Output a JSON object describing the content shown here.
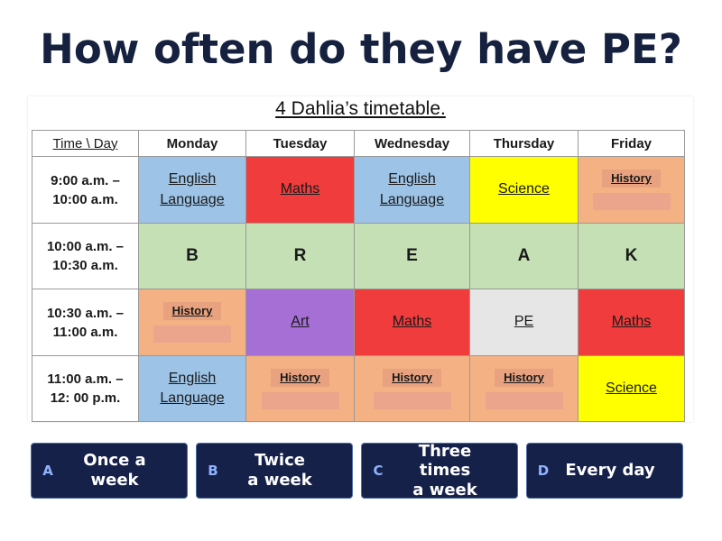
{
  "question": "How often do they have PE?",
  "timetable": {
    "title": "4 Dahlia’s timetable.",
    "header": [
      "Time \\ Day",
      "Monday",
      "Tuesday",
      "Wednesday",
      "Thursday",
      "Friday"
    ],
    "rows": [
      {
        "time": "9:00 a.m. –\n10:00 a.m.",
        "cells": [
          {
            "text": "English\nLanguage",
            "color": "#9dc3e6"
          },
          {
            "text": "Maths",
            "color": "#f03c3c"
          },
          {
            "text": "English\nLanguage",
            "color": "#9dc3e6"
          },
          {
            "text": "Science",
            "color": "#ffff00"
          },
          {
            "text": "History",
            "color": "#f4b183",
            "answer_box": true
          }
        ]
      },
      {
        "time": "10:00 a.m. –\n10:30 a.m.",
        "cells": [
          {
            "text": "B",
            "color": "#c5e0b4",
            "bold": true
          },
          {
            "text": "R",
            "color": "#c5e0b4",
            "bold": true
          },
          {
            "text": "E",
            "color": "#c5e0b4",
            "bold": true
          },
          {
            "text": "A",
            "color": "#c5e0b4",
            "bold": true
          },
          {
            "text": "K",
            "color": "#c5e0b4",
            "bold": true
          }
        ]
      },
      {
        "time": "10:30 a.m. –\n11:00 a.m.",
        "cells": [
          {
            "text": "History",
            "color": "#f4b183",
            "answer_box": true
          },
          {
            "text": "Art",
            "color": "#a56fd6"
          },
          {
            "text": "Maths",
            "color": "#f03c3c"
          },
          {
            "text": "PE",
            "color": "#e6e6e6"
          },
          {
            "text": "Maths",
            "color": "#f03c3c"
          }
        ]
      },
      {
        "time": "11:00 a.m. –\n12: 00 p.m.",
        "cells": [
          {
            "text": "English\nLanguage",
            "color": "#9dc3e6"
          },
          {
            "text": "History",
            "color": "#f4b183",
            "answer_box": true
          },
          {
            "text": "History",
            "color": "#f4b183",
            "answer_box": true
          },
          {
            "text": "History",
            "color": "#f4b183",
            "answer_box": true
          },
          {
            "text": "Science",
            "color": "#ffff00"
          }
        ]
      }
    ]
  },
  "options": [
    {
      "letter": "A",
      "text": "Once a\nweek"
    },
    {
      "letter": "B",
      "text": "Twice\na week"
    },
    {
      "letter": "C",
      "text": "Three times\na week"
    },
    {
      "letter": "D",
      "text": "Every day"
    }
  ]
}
